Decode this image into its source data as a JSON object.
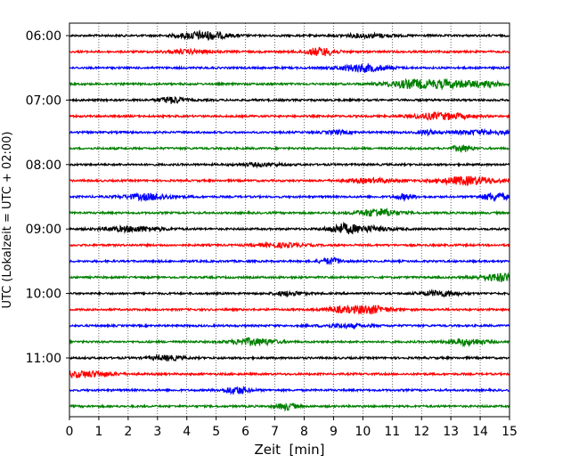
{
  "chart_data": {
    "type": "line",
    "subtype": "helicorder",
    "xlabel": "Zeit  [min]",
    "ylabel": "UTC (Lokalzeit = UTC + 02:00)",
    "xlim": [
      0,
      15
    ],
    "x_ticks": [
      0,
      1,
      2,
      3,
      4,
      5,
      6,
      7,
      8,
      9,
      10,
      11,
      12,
      13,
      14,
      15
    ],
    "x_tick_labels": [
      "0",
      "1",
      "2",
      "3",
      "4",
      "5",
      "6",
      "7",
      "8",
      "9",
      "10",
      "11",
      "12",
      "13",
      "14",
      "15"
    ],
    "y_tick_labels": [
      "06:00",
      "07:00",
      "08:00",
      "09:00",
      "10:00",
      "11:00"
    ],
    "grid": "vertical dotted",
    "trace_colors": [
      "#000000",
      "#ff0000",
      "#0000ff",
      "#008000"
    ],
    "traces": [
      {
        "start": "06:00",
        "color": "#000000"
      },
      {
        "start": "06:15",
        "color": "#ff0000"
      },
      {
        "start": "06:30",
        "color": "#0000ff"
      },
      {
        "start": "06:45",
        "color": "#008000"
      },
      {
        "start": "07:00",
        "color": "#000000"
      },
      {
        "start": "07:15",
        "color": "#ff0000"
      },
      {
        "start": "07:30",
        "color": "#0000ff"
      },
      {
        "start": "07:45",
        "color": "#008000"
      },
      {
        "start": "08:00",
        "color": "#000000"
      },
      {
        "start": "08:15",
        "color": "#ff0000"
      },
      {
        "start": "08:30",
        "color": "#0000ff"
      },
      {
        "start": "08:45",
        "color": "#008000"
      },
      {
        "start": "09:00",
        "color": "#000000"
      },
      {
        "start": "09:15",
        "color": "#ff0000"
      },
      {
        "start": "09:30",
        "color": "#0000ff"
      },
      {
        "start": "09:45",
        "color": "#008000"
      },
      {
        "start": "10:00",
        "color": "#000000"
      },
      {
        "start": "10:15",
        "color": "#ff0000"
      },
      {
        "start": "10:30",
        "color": "#0000ff"
      },
      {
        "start": "10:45",
        "color": "#008000"
      },
      {
        "start": "11:00",
        "color": "#000000"
      },
      {
        "start": "11:15",
        "color": "#ff0000"
      },
      {
        "start": "11:30",
        "color": "#0000ff"
      },
      {
        "start": "11:45",
        "color": "#008000"
      }
    ]
  }
}
